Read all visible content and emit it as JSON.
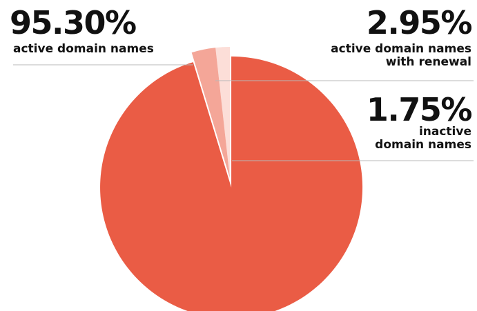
{
  "chart_data": {
    "type": "pie",
    "slices": [
      {
        "value": 95.3,
        "label": "95.30%",
        "description": [
          "active domain names"
        ],
        "color": "#ea5c45"
      },
      {
        "value": 2.95,
        "label": "2.95%",
        "description": [
          "active domain names",
          "with renewal"
        ],
        "color": "#f4a698"
      },
      {
        "value": 1.75,
        "label": "1.75%",
        "description": [
          "inactive",
          "domain names"
        ],
        "color": "#fcded8"
      }
    ],
    "exploded": [
      true,
      false,
      false
    ],
    "legend": "none"
  }
}
